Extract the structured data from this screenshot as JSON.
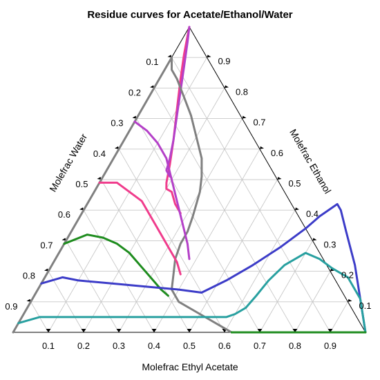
{
  "chart_data": {
    "type": "ternary",
    "title": "Residue curves for Acetate/Ethanol/Water",
    "axes": {
      "bottom": {
        "label": "Molefrac Ethyl Acetate",
        "ticks": [
          "0.1",
          "0.2",
          "0.3",
          "0.4",
          "0.5",
          "0.6",
          "0.7",
          "0.8",
          "0.9"
        ]
      },
      "right": {
        "label": "Molefrac Ethanol",
        "ticks": [
          "0.1",
          "0.2",
          "0.3",
          "0.4",
          "0.5",
          "0.6",
          "0.7",
          "0.8",
          "0.9"
        ]
      },
      "left": {
        "label": "Molefrac Water",
        "ticks": [
          "0.1",
          "0.2",
          "0.3",
          "0.4",
          "0.5",
          "0.6",
          "0.7",
          "0.8",
          "0.9"
        ]
      }
    },
    "grid": true,
    "series": [
      {
        "color": "#f03c8c",
        "points": [
          [
            0.0,
            1.0
          ],
          [
            0.01,
            0.97
          ],
          [
            0.03,
            0.91
          ],
          [
            0.06,
            0.83
          ],
          [
            0.1,
            0.73
          ],
          [
            0.14,
            0.63
          ],
          [
            0.17,
            0.55
          ],
          [
            0.19,
            0.49
          ],
          [
            0.2,
            0.47
          ],
          [
            0.22,
            0.46
          ],
          [
            0.25,
            0.42
          ],
          [
            0.28,
            0.39
          ]
        ]
      },
      {
        "color": "#b440c8",
        "points": [
          [
            0.0,
            1.0
          ],
          [
            0.02,
            0.95
          ],
          [
            0.05,
            0.87
          ],
          [
            0.08,
            0.79
          ],
          [
            0.11,
            0.71
          ],
          [
            0.14,
            0.63
          ],
          [
            0.16,
            0.57
          ],
          [
            0.17,
            0.53
          ],
          [
            0.19,
            0.51
          ]
        ]
      },
      {
        "color": "#808080",
        "points": [
          [
            0.0,
            0.0
          ],
          [
            0.0,
            0.2
          ],
          [
            0.0,
            0.45
          ],
          [
            0.0,
            0.65
          ],
          [
            0.0,
            0.78
          ],
          [
            0.0,
            0.9
          ],
          [
            0.02,
            0.86
          ],
          [
            0.05,
            0.83
          ],
          [
            0.1,
            0.77
          ],
          [
            0.15,
            0.71
          ],
          [
            0.2,
            0.64
          ],
          [
            0.25,
            0.57
          ],
          [
            0.28,
            0.51
          ],
          [
            0.3,
            0.46
          ],
          [
            0.31,
            0.42
          ],
          [
            0.32,
            0.38
          ],
          [
            0.33,
            0.33
          ],
          [
            0.33,
            0.29
          ],
          [
            0.34,
            0.24
          ],
          [
            0.36,
            0.19
          ],
          [
            0.38,
            0.14
          ],
          [
            0.42,
            0.1
          ],
          [
            0.5,
            0.06
          ],
          [
            0.58,
            0.02
          ],
          [
            0.62,
            0.0
          ]
        ]
      },
      {
        "color": "#b440c8",
        "points": [
          [
            0.0,
            0.69
          ],
          [
            0.05,
            0.66
          ],
          [
            0.1,
            0.62
          ],
          [
            0.15,
            0.57
          ],
          [
            0.2,
            0.5
          ],
          [
            0.25,
            0.43
          ],
          [
            0.3,
            0.36
          ],
          [
            0.35,
            0.29
          ],
          [
            0.38,
            0.24
          ]
        ]
      },
      {
        "color": "#f03c8c",
        "points": [
          [
            0.0,
            0.49
          ],
          [
            0.05,
            0.49
          ],
          [
            0.1,
            0.46
          ],
          [
            0.15,
            0.43
          ],
          [
            0.2,
            0.38
          ],
          [
            0.25,
            0.33
          ],
          [
            0.3,
            0.28
          ],
          [
            0.35,
            0.23
          ],
          [
            0.38,
            0.19
          ]
        ]
      },
      {
        "color": "#1e8c1e",
        "points": [
          [
            0.0,
            0.29
          ],
          [
            0.05,
            0.32
          ],
          [
            0.1,
            0.31
          ],
          [
            0.15,
            0.29
          ],
          [
            0.2,
            0.26
          ],
          [
            0.25,
            0.22
          ],
          [
            0.3,
            0.18
          ],
          [
            0.35,
            0.14
          ],
          [
            0.38,
            0.12
          ]
        ]
      },
      {
        "color": "#3c3cc8",
        "points": [
          [
            0.0,
            0.16
          ],
          [
            0.05,
            0.18
          ],
          [
            0.1,
            0.17
          ],
          [
            0.2,
            0.16
          ],
          [
            0.3,
            0.15
          ],
          [
            0.4,
            0.14
          ],
          [
            0.47,
            0.13
          ],
          [
            0.52,
            0.17
          ],
          [
            0.57,
            0.22
          ],
          [
            0.62,
            0.28
          ],
          [
            0.66,
            0.34
          ],
          [
            0.68,
            0.38
          ],
          [
            0.71,
            0.42
          ],
          [
            0.73,
            0.4
          ],
          [
            0.78,
            0.33
          ],
          [
            0.86,
            0.22
          ],
          [
            0.93,
            0.11
          ],
          [
            1.0,
            0.0
          ]
        ]
      },
      {
        "color": "#28a0a0",
        "points": [
          [
            0.0,
            0.03
          ],
          [
            0.05,
            0.05
          ],
          [
            0.2,
            0.05
          ],
          [
            0.4,
            0.05
          ],
          [
            0.58,
            0.05
          ],
          [
            0.6,
            0.06
          ],
          [
            0.62,
            0.08
          ],
          [
            0.63,
            0.12
          ],
          [
            0.64,
            0.17
          ],
          [
            0.66,
            0.22
          ],
          [
            0.7,
            0.26
          ],
          [
            0.75,
            0.24
          ],
          [
            0.8,
            0.21
          ],
          [
            0.86,
            0.18
          ],
          [
            0.93,
            0.11
          ],
          [
            1.0,
            0.0
          ]
        ]
      },
      {
        "color": "#1e8c1e",
        "points": [
          [
            0.62,
            0.0
          ],
          [
            0.8,
            0.0
          ],
          [
            1.0,
            0.0
          ]
        ]
      }
    ]
  }
}
